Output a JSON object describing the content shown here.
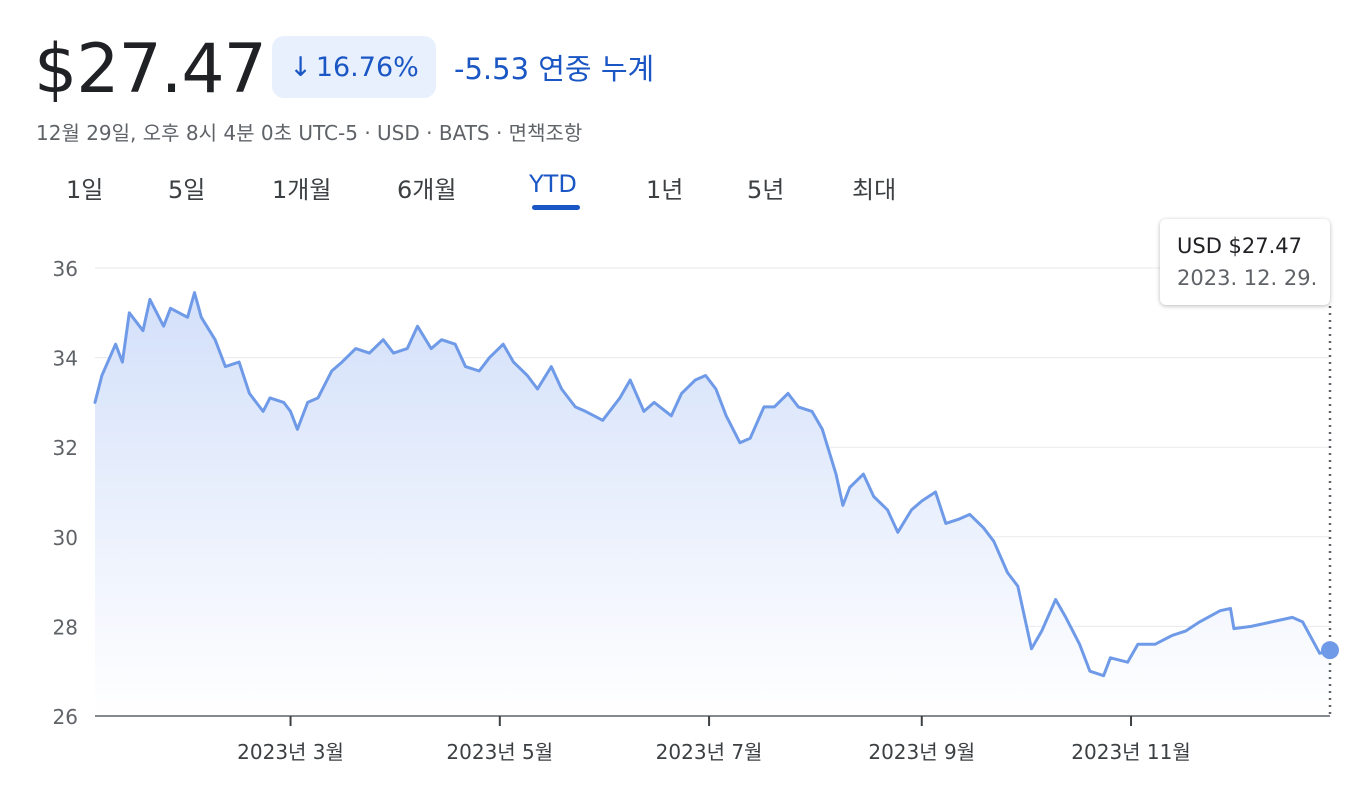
{
  "header": {
    "price": "$27.47",
    "change_percent": "16.76%",
    "change_text": "-5.53 연중 누계",
    "meta": "12월 29일, 오후 8시 4분 0초 UTC-5 · USD · BATS · 면책조항"
  },
  "tabs": [
    "1일",
    "5일",
    "1개월",
    "6개월",
    "YTD",
    "1년",
    "5년",
    "최대"
  ],
  "active_tab": "YTD",
  "tooltip": {
    "price": "USD $27.47",
    "date": "2023. 12. 29."
  },
  "colors": {
    "accent": "#1a56c4",
    "line": "#6f9ae8",
    "fill": "#dbe6fb"
  },
  "chart_data": {
    "type": "area",
    "title": "",
    "xlabel": "",
    "ylabel": "",
    "ylim": [
      26,
      36
    ],
    "yticks": [
      26,
      28,
      30,
      32,
      34,
      36
    ],
    "xticks": [
      {
        "label": "2023년 3월",
        "date": "2023-03-01"
      },
      {
        "label": "2023년 5월",
        "date": "2023-05-01"
      },
      {
        "label": "2023년 7월",
        "date": "2023-07-01"
      },
      {
        "label": "2023년 9월",
        "date": "2023-09-01"
      },
      {
        "label": "2023년 11월",
        "date": "2023-11-01"
      }
    ],
    "grid": true,
    "series": [
      {
        "points": [
          [
            "2023-01-03",
            33.0
          ],
          [
            "2023-01-05",
            33.6
          ],
          [
            "2023-01-09",
            34.3
          ],
          [
            "2023-01-11",
            33.9
          ],
          [
            "2023-01-13",
            35.0
          ],
          [
            "2023-01-17",
            34.6
          ],
          [
            "2023-01-19",
            35.3
          ],
          [
            "2023-01-23",
            34.7
          ],
          [
            "2023-01-25",
            35.1
          ],
          [
            "2023-01-30",
            34.9
          ],
          [
            "2023-02-01",
            35.45
          ],
          [
            "2023-02-03",
            34.9
          ],
          [
            "2023-02-07",
            34.4
          ],
          [
            "2023-02-10",
            33.8
          ],
          [
            "2023-02-14",
            33.9
          ],
          [
            "2023-02-17",
            33.2
          ],
          [
            "2023-02-21",
            32.8
          ],
          [
            "2023-02-23",
            33.1
          ],
          [
            "2023-02-27",
            33.0
          ],
          [
            "2023-03-01",
            32.8
          ],
          [
            "2023-03-03",
            32.4
          ],
          [
            "2023-03-06",
            33.0
          ],
          [
            "2023-03-09",
            33.1
          ],
          [
            "2023-03-13",
            33.7
          ],
          [
            "2023-03-16",
            33.9
          ],
          [
            "2023-03-20",
            34.2
          ],
          [
            "2023-03-24",
            34.1
          ],
          [
            "2023-03-28",
            34.4
          ],
          [
            "2023-03-31",
            34.1
          ],
          [
            "2023-04-04",
            34.2
          ],
          [
            "2023-04-07",
            34.7
          ],
          [
            "2023-04-11",
            34.2
          ],
          [
            "2023-04-14",
            34.4
          ],
          [
            "2023-04-18",
            34.3
          ],
          [
            "2023-04-21",
            33.8
          ],
          [
            "2023-04-25",
            33.7
          ],
          [
            "2023-04-28",
            34.0
          ],
          [
            "2023-05-02",
            34.3
          ],
          [
            "2023-05-05",
            33.9
          ],
          [
            "2023-05-09",
            33.6
          ],
          [
            "2023-05-12",
            33.3
          ],
          [
            "2023-05-16",
            33.8
          ],
          [
            "2023-05-19",
            33.3
          ],
          [
            "2023-05-23",
            32.9
          ],
          [
            "2023-05-26",
            32.8
          ],
          [
            "2023-05-31",
            32.6
          ],
          [
            "2023-06-05",
            33.1
          ],
          [
            "2023-06-08",
            33.5
          ],
          [
            "2023-06-12",
            32.8
          ],
          [
            "2023-06-15",
            33.0
          ],
          [
            "2023-06-20",
            32.7
          ],
          [
            "2023-06-23",
            33.2
          ],
          [
            "2023-06-27",
            33.5
          ],
          [
            "2023-06-30",
            33.6
          ],
          [
            "2023-07-03",
            33.3
          ],
          [
            "2023-07-06",
            32.7
          ],
          [
            "2023-07-10",
            32.1
          ],
          [
            "2023-07-13",
            32.2
          ],
          [
            "2023-07-17",
            32.9
          ],
          [
            "2023-07-20",
            32.9
          ],
          [
            "2023-07-24",
            33.2
          ],
          [
            "2023-07-27",
            32.9
          ],
          [
            "2023-07-31",
            32.8
          ],
          [
            "2023-08-03",
            32.4
          ],
          [
            "2023-08-07",
            31.4
          ],
          [
            "2023-08-09",
            30.7
          ],
          [
            "2023-08-11",
            31.1
          ],
          [
            "2023-08-15",
            31.4
          ],
          [
            "2023-08-18",
            30.9
          ],
          [
            "2023-08-22",
            30.6
          ],
          [
            "2023-08-25",
            30.1
          ],
          [
            "2023-08-29",
            30.6
          ],
          [
            "2023-09-01",
            30.8
          ],
          [
            "2023-09-05",
            31.0
          ],
          [
            "2023-09-08",
            30.3
          ],
          [
            "2023-09-12",
            30.4
          ],
          [
            "2023-09-15",
            30.5
          ],
          [
            "2023-09-19",
            30.2
          ],
          [
            "2023-09-22",
            29.9
          ],
          [
            "2023-09-26",
            29.2
          ],
          [
            "2023-09-29",
            28.9
          ],
          [
            "2023-10-03",
            27.5
          ],
          [
            "2023-10-06",
            27.9
          ],
          [
            "2023-10-10",
            28.6
          ],
          [
            "2023-10-13",
            28.2
          ],
          [
            "2023-10-17",
            27.6
          ],
          [
            "2023-10-20",
            27.0
          ],
          [
            "2023-10-24",
            26.9
          ],
          [
            "2023-10-26",
            27.3
          ],
          [
            "2023-10-31",
            27.2
          ],
          [
            "2023-11-03",
            27.6
          ],
          [
            "2023-11-08",
            27.6
          ],
          [
            "2023-11-13",
            27.8
          ],
          [
            "2023-11-17",
            27.9
          ],
          [
            "2023-11-21",
            28.1
          ],
          [
            "2023-11-27",
            28.35
          ],
          [
            "2023-11-30",
            28.4
          ],
          [
            "2023-12-01",
            27.95
          ],
          [
            "2023-12-06",
            28.0
          ],
          [
            "2023-12-12",
            28.1
          ],
          [
            "2023-12-18",
            28.2
          ],
          [
            "2023-12-21",
            28.1
          ],
          [
            "2023-12-26",
            27.4
          ],
          [
            "2023-12-29",
            27.47
          ]
        ]
      }
    ]
  }
}
